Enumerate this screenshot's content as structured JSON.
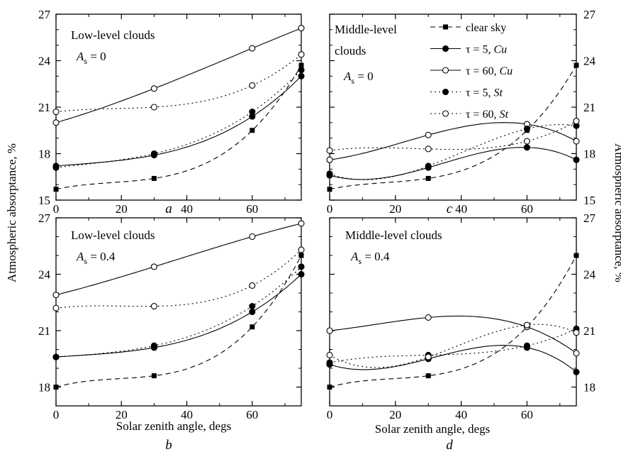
{
  "figure": {
    "ylabel": "Atmospheric absorptance, %",
    "xlabel": "Solar zenith angle, degs"
  },
  "legend": {
    "items": [
      {
        "label": "clear sky",
        "style": "dashed",
        "marker": "square-filled"
      },
      {
        "label": "τ = 5, ",
        "label_em": "Cu",
        "style": "solid",
        "marker": "circle-filled"
      },
      {
        "label": "τ = 60, ",
        "label_em": "Cu",
        "style": "solid",
        "marker": "circle-open"
      },
      {
        "label": "τ = 5, ",
        "label_em": "St",
        "style": "dotted",
        "marker": "circle-filled"
      },
      {
        "label": "τ = 60, ",
        "label_em": "St",
        "style": "dotted",
        "marker": "circle-open"
      }
    ]
  },
  "chart_data": [
    {
      "type": "line",
      "panel": "a",
      "title": "Low-level clouds",
      "surface_albedo": "A",
      "surface_albedo_sub": "s",
      "surface_albedo_value": " = 0",
      "xlim": [
        0,
        75
      ],
      "ylim": [
        15,
        27
      ],
      "xticks": [
        0,
        20,
        40,
        60
      ],
      "yticks": [
        15,
        18,
        21,
        24,
        27
      ],
      "x": [
        0,
        30,
        60,
        75
      ],
      "series": [
        {
          "name": "clear sky",
          "values": [
            15.7,
            16.4,
            19.5,
            23.7
          ]
        },
        {
          "name": "τ = 5, Cu",
          "values": [
            17.2,
            17.9,
            20.4,
            23.0
          ]
        },
        {
          "name": "τ = 60, Cu",
          "values": [
            20.0,
            22.2,
            24.8,
            26.1
          ]
        },
        {
          "name": "τ = 5, St",
          "values": [
            17.1,
            18.0,
            20.7,
            23.4
          ]
        },
        {
          "name": "τ = 60, St",
          "values": [
            20.7,
            21.0,
            22.4,
            24.4
          ]
        }
      ]
    },
    {
      "type": "line",
      "panel": "c",
      "title": "Middle-level clouds",
      "surface_albedo": "A",
      "surface_albedo_sub": "s",
      "surface_albedo_value": " = 0",
      "xlim": [
        0,
        75
      ],
      "ylim": [
        15,
        27
      ],
      "xticks": [
        0,
        20,
        40,
        60
      ],
      "yticks": [
        15,
        18,
        21,
        24,
        27
      ],
      "x": [
        0,
        30,
        60,
        75
      ],
      "series": [
        {
          "name": "clear sky",
          "values": [
            15.7,
            16.4,
            19.5,
            23.7
          ]
        },
        {
          "name": "τ = 5, Cu",
          "values": [
            16.6,
            17.1,
            18.4,
            17.6
          ]
        },
        {
          "name": "τ = 60, Cu",
          "values": [
            17.6,
            19.2,
            19.9,
            18.8
          ]
        },
        {
          "name": "τ = 5, St",
          "values": [
            16.7,
            17.2,
            19.6,
            19.8
          ]
        },
        {
          "name": "τ = 60, St",
          "values": [
            18.2,
            18.3,
            18.8,
            20.1
          ]
        }
      ]
    },
    {
      "type": "line",
      "panel": "b",
      "title": "Low-level clouds",
      "surface_albedo": "A",
      "surface_albedo_sub": "s",
      "surface_albedo_value": " = 0.4",
      "xlim": [
        0,
        75
      ],
      "ylim": [
        17,
        27
      ],
      "xticks": [
        0,
        20,
        40,
        60
      ],
      "yticks": [
        18,
        21,
        24,
        27
      ],
      "x": [
        0,
        30,
        60,
        75
      ],
      "series": [
        {
          "name": "clear sky",
          "values": [
            18.0,
            18.6,
            21.2,
            25.0
          ]
        },
        {
          "name": "τ = 5, Cu",
          "values": [
            19.6,
            20.1,
            22.0,
            24.0
          ]
        },
        {
          "name": "τ = 60, Cu",
          "values": [
            22.9,
            24.4,
            26.0,
            26.7
          ]
        },
        {
          "name": "τ = 5, St",
          "values": [
            19.6,
            20.2,
            22.3,
            24.4
          ]
        },
        {
          "name": "τ = 60, St",
          "values": [
            22.2,
            22.3,
            23.4,
            25.3
          ]
        }
      ]
    },
    {
      "type": "line",
      "panel": "d",
      "title": "Middle-level clouds",
      "surface_albedo": "A",
      "surface_albedo_sub": "s",
      "surface_albedo_value": " = 0.4",
      "xlim": [
        0,
        75
      ],
      "ylim": [
        17,
        27
      ],
      "xticks": [
        0,
        20,
        40,
        60
      ],
      "yticks": [
        18,
        21,
        24,
        27
      ],
      "x": [
        0,
        30,
        60,
        75
      ],
      "series": [
        {
          "name": "clear sky",
          "values": [
            18.0,
            18.6,
            21.2,
            25.0
          ]
        },
        {
          "name": "τ = 5, Cu",
          "values": [
            19.2,
            19.5,
            20.1,
            18.8
          ]
        },
        {
          "name": "τ = 60, Cu",
          "values": [
            21.0,
            21.7,
            21.2,
            19.8
          ]
        },
        {
          "name": "τ = 5, St",
          "values": [
            19.3,
            19.7,
            20.2,
            21.1
          ]
        },
        {
          "name": "τ = 60, St",
          "values": [
            19.7,
            19.6,
            21.3,
            20.9
          ]
        }
      ]
    }
  ]
}
